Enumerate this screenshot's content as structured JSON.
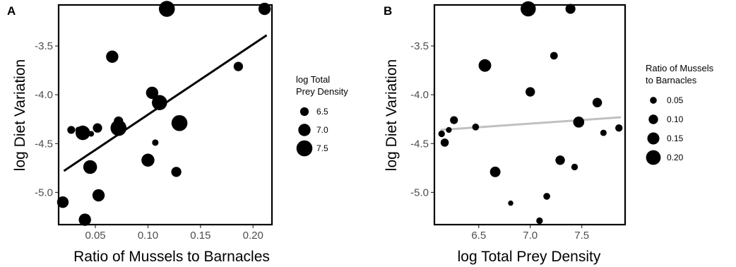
{
  "chart_data": [
    {
      "type": "scatter",
      "panel": "A",
      "xlabel": "Ratio of Mussels to Barnacles",
      "ylabel": "log Diet Variation",
      "xlim": [
        0.015,
        0.218
      ],
      "ylim": [
        -5.33,
        -3.08
      ],
      "xticks": [
        0.05,
        0.1,
        0.15,
        0.2
      ],
      "xtick_labels": [
        "0.05",
        "0.10",
        "0.15",
        "0.20"
      ],
      "yticks": [
        -5.0,
        -4.5,
        -4.0,
        -3.5
      ],
      "ytick_labels": [
        "-5.0",
        "-4.5",
        "-4.0",
        "-3.5"
      ],
      "size_variable": "log Total Prey Density",
      "legend": {
        "title": [
          "log Total",
          "Prey Density"
        ],
        "entries": [
          {
            "label": "6.5",
            "value": 6.5
          },
          {
            "label": "7.0",
            "value": 7.0
          },
          {
            "label": "7.5",
            "value": 7.5
          }
        ],
        "position": "right"
      },
      "fit_line": {
        "x": [
          0.02,
          0.213
        ],
        "y": [
          -4.78,
          -3.39
        ],
        "color": "#000000"
      },
      "points": [
        {
          "x": 0.019,
          "y": -5.1,
          "size": 6.9
        },
        {
          "x": 0.027,
          "y": -4.36,
          "size": 6.4
        },
        {
          "x": 0.034,
          "y": -4.36,
          "size": 6.2
        },
        {
          "x": 0.038,
          "y": -4.39,
          "size": 7.3
        },
        {
          "x": 0.04,
          "y": -5.28,
          "size": 7.0
        },
        {
          "x": 0.045,
          "y": -4.74,
          "size": 7.2
        },
        {
          "x": 0.046,
          "y": -4.4,
          "size": 6.1
        },
        {
          "x": 0.052,
          "y": -4.34,
          "size": 6.6
        },
        {
          "x": 0.053,
          "y": -5.03,
          "size": 7.0
        },
        {
          "x": 0.066,
          "y": -3.61,
          "size": 7.0
        },
        {
          "x": 0.072,
          "y": -4.27,
          "size": 6.6
        },
        {
          "x": 0.072,
          "y": -4.34,
          "size": 7.5
        },
        {
          "x": 0.1,
          "y": -4.67,
          "size": 7.1
        },
        {
          "x": 0.104,
          "y": -3.98,
          "size": 7.0
        },
        {
          "x": 0.107,
          "y": -4.49,
          "size": 6.2
        },
        {
          "x": 0.111,
          "y": -4.08,
          "size": 7.4
        },
        {
          "x": 0.118,
          "y": -3.12,
          "size": 7.5
        },
        {
          "x": 0.127,
          "y": -4.79,
          "size": 6.7
        },
        {
          "x": 0.13,
          "y": -4.29,
          "size": 7.5
        },
        {
          "x": 0.186,
          "y": -3.71,
          "size": 6.6
        },
        {
          "x": 0.211,
          "y": -3.12,
          "size": 7.0
        }
      ]
    },
    {
      "type": "scatter",
      "panel": "B",
      "xlabel": "log Total Prey Density",
      "ylabel": "log Diet Variation",
      "xlim": [
        6.07,
        7.92
      ],
      "ylim": [
        -5.33,
        -3.08
      ],
      "xticks": [
        6.5,
        7.0,
        7.5
      ],
      "xtick_labels": [
        "6.5",
        "7.0",
        "7.5"
      ],
      "yticks": [
        -5.0,
        -4.5,
        -4.0,
        -3.5
      ],
      "ytick_labels": [
        "-5.0",
        "-4.5",
        "-4.0",
        "-3.5"
      ],
      "size_variable": "Ratio of Mussels to Barnacles",
      "legend": {
        "title": [
          "Ratio of Mussels",
          "to Barnacles"
        ],
        "entries": [
          {
            "label": "0.05",
            "value": 0.05
          },
          {
            "label": "0.10",
            "value": 0.1
          },
          {
            "label": "0.15",
            "value": 0.15
          },
          {
            "label": "0.20",
            "value": 0.2
          }
        ],
        "position": "right"
      },
      "fit_line": {
        "x": [
          6.13,
          7.88
        ],
        "y": [
          -4.36,
          -4.23
        ],
        "color": "#c0c0c0"
      },
      "points": [
        {
          "x": 6.14,
          "y": -4.4,
          "size": 0.045
        },
        {
          "x": 6.17,
          "y": -4.49,
          "size": 0.075
        },
        {
          "x": 6.21,
          "y": -4.36,
          "size": 0.03
        },
        {
          "x": 6.26,
          "y": -4.26,
          "size": 0.07
        },
        {
          "x": 6.47,
          "y": -4.33,
          "size": 0.05
        },
        {
          "x": 6.56,
          "y": -3.7,
          "size": 0.16
        },
        {
          "x": 6.66,
          "y": -4.79,
          "size": 0.12
        },
        {
          "x": 6.81,
          "y": -5.11,
          "size": 0.02
        },
        {
          "x": 6.98,
          "y": -3.12,
          "size": 0.21
        },
        {
          "x": 7.0,
          "y": -3.97,
          "size": 0.1
        },
        {
          "x": 7.09,
          "y": -5.29,
          "size": 0.045
        },
        {
          "x": 7.16,
          "y": -5.04,
          "size": 0.05
        },
        {
          "x": 7.23,
          "y": -3.6,
          "size": 0.065
        },
        {
          "x": 7.29,
          "y": -4.67,
          "size": 0.1
        },
        {
          "x": 7.39,
          "y": -3.12,
          "size": 0.11
        },
        {
          "x": 7.43,
          "y": -4.74,
          "size": 0.045
        },
        {
          "x": 7.47,
          "y": -4.28,
          "size": 0.13
        },
        {
          "x": 7.65,
          "y": -4.08,
          "size": 0.1
        },
        {
          "x": 7.71,
          "y": -4.39,
          "size": 0.04
        },
        {
          "x": 7.86,
          "y": -4.34,
          "size": 0.06
        }
      ]
    }
  ]
}
